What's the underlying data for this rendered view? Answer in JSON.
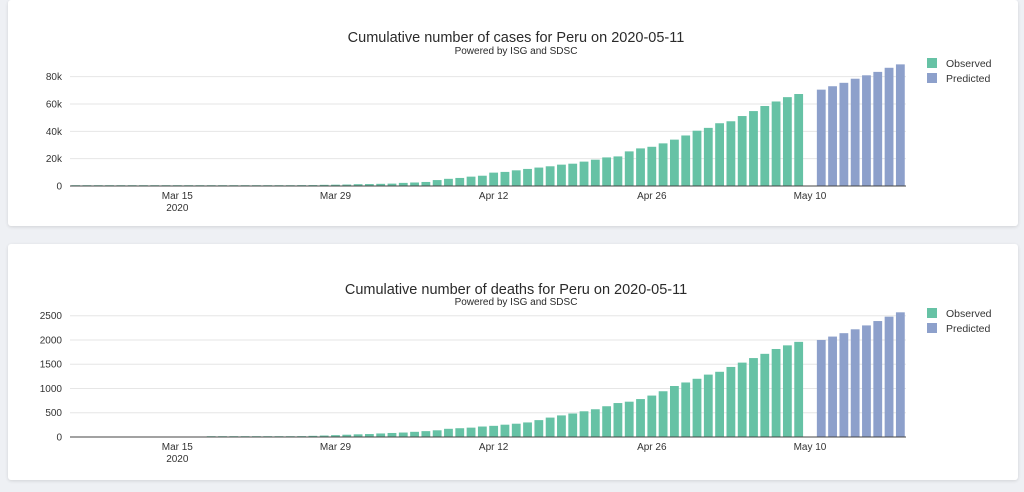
{
  "colors": {
    "observed": "#66c2a5",
    "predicted": "#8da0cb",
    "background": "#eef0f4"
  },
  "chart_data": [
    {
      "type": "bar",
      "title": "Cumulative number of cases for Peru on 2020-05-11",
      "subtitle": "Powered by ISG and SDSC",
      "x_start": "2020-03-06",
      "x_end": "2020-05-18",
      "x_tick_labels": [
        "Mar 15",
        "Mar 29",
        "Apr 12",
        "Apr 26",
        "May 10"
      ],
      "x_tick_dates": [
        "2020-03-15",
        "2020-03-29",
        "2020-04-12",
        "2020-04-26",
        "2020-05-10"
      ],
      "x_year_label": "2020",
      "ylim": [
        0,
        90000
      ],
      "y_ticks": [
        0,
        20000,
        40000,
        60000,
        80000
      ],
      "y_tick_labels": [
        "0",
        "20k",
        "40k",
        "60k",
        "80k"
      ],
      "grid": true,
      "legend_position": "top-right",
      "series": [
        {
          "name": "Observed",
          "start_date": "2020-03-06",
          "values": [
            1,
            7,
            9,
            11,
            17,
            22,
            38,
            43,
            71,
            86,
            117,
            145,
            234,
            263,
            318,
            363,
            395,
            416,
            480,
            580,
            635,
            671,
            852,
            950,
            1065,
            1323,
            1414,
            1595,
            1746,
            2281,
            2561,
            2954,
            4342,
            5256,
            5897,
            6848,
            7519,
            9784,
            10303,
            11475,
            12491,
            13489,
            14420,
            15628,
            16325,
            17837,
            19250,
            20914,
            21648,
            25331,
            27517,
            28699,
            31190,
            33931,
            36976,
            40459,
            42534,
            45928,
            47372,
            51189,
            54817,
            58526,
            61847,
            65015,
            67307
          ]
        },
        {
          "name": "Predicted",
          "start_date": "2020-05-11",
          "values": [
            70500,
            73000,
            75500,
            78500,
            81000,
            83500,
            86500,
            89000
          ]
        }
      ]
    },
    {
      "type": "bar",
      "title": "Cumulative number of deaths for Peru on 2020-05-11",
      "subtitle": "Powered by ISG and SDSC",
      "x_start": "2020-03-06",
      "x_end": "2020-05-18",
      "x_tick_labels": [
        "Mar 15",
        "Mar 29",
        "Apr 12",
        "Apr 26",
        "May 10"
      ],
      "x_tick_dates": [
        "2020-03-15",
        "2020-03-29",
        "2020-04-12",
        "2020-04-26",
        "2020-05-10"
      ],
      "x_year_label": "2020",
      "ylim": [
        0,
        2700
      ],
      "y_ticks": [
        0,
        500,
        1000,
        1500,
        2000,
        2500
      ],
      "y_tick_labels": [
        "0",
        "500",
        "1000",
        "1500",
        "2000",
        "2500"
      ],
      "grid": true,
      "legend_position": "top-right",
      "series": [
        {
          "name": "Observed",
          "start_date": "2020-03-06",
          "values": [
            0,
            0,
            0,
            0,
            0,
            0,
            0,
            0,
            0,
            0,
            0,
            0,
            3,
            5,
            5,
            7,
            9,
            9,
            11,
            16,
            18,
            24,
            30,
            38,
            47,
            55,
            61,
            73,
            83,
            92,
            107,
            121,
            138,
            169,
            181,
            193,
            216,
            230,
            254,
            274,
            300,
            348,
            400,
            445,
            484,
            530,
            572,
            634,
            700,
            728,
            782,
            854,
            943,
            1051,
            1124,
            1200,
            1286,
            1344,
            1444,
            1533,
            1627,
            1714,
            1814,
            1889,
            1961
          ]
        },
        {
          "name": "Predicted",
          "start_date": "2020-05-11",
          "values": [
            2000,
            2070,
            2140,
            2220,
            2300,
            2390,
            2480,
            2570
          ]
        }
      ]
    }
  ]
}
